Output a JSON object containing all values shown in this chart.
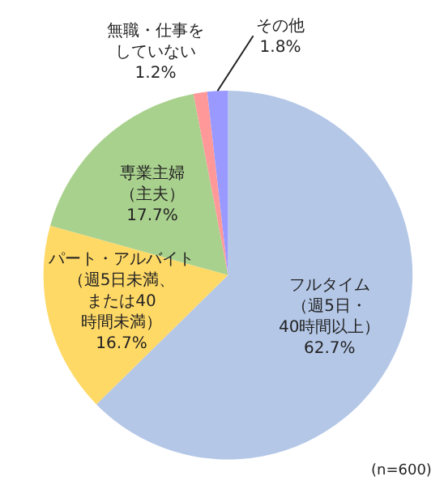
{
  "chart_data": {
    "type": "pie",
    "categories": [
      "フルタイム（週5日・40時間以上）",
      "パート・アルバイト（週5日未満、または40時間未満）",
      "専業主婦（主夫）",
      "無職・仕事をしていない",
      "その他"
    ],
    "values": [
      62.7,
      16.7,
      17.7,
      1.2,
      1.8
    ],
    "value_labels": [
      "62.7%",
      "16.7%",
      "17.7%",
      "1.2%",
      "1.8%"
    ],
    "colors": [
      "#b4c7e7",
      "#ffd966",
      "#a9d18e",
      "#ff9999",
      "#9999ff"
    ],
    "annotations": [
      "(n=600)"
    ],
    "legend": false
  }
}
